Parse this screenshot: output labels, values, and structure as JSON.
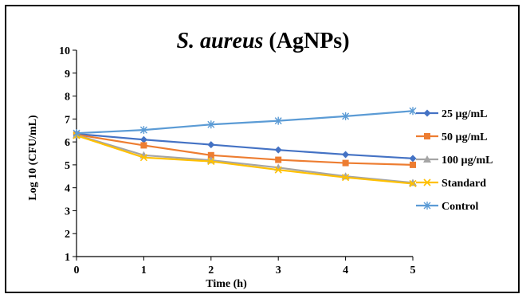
{
  "chart_data": {
    "type": "line",
    "title_italic": "S. aureus",
    "title_rest": " (AgNPs)",
    "xlabel": "Time (h)",
    "ylabel": "Log 10 (CFU/mL)",
    "x": [
      0,
      1,
      2,
      3,
      4,
      5
    ],
    "xlim": [
      0,
      5
    ],
    "ylim": [
      1,
      10
    ],
    "yticks": [
      1,
      2,
      3,
      4,
      5,
      6,
      7,
      8,
      9,
      10
    ],
    "grid": false,
    "legend_position": "right",
    "series": [
      {
        "name": "25 µg/mL",
        "color": "#4472C4",
        "marker": "diamond",
        "values": [
          6.35,
          6.1,
          5.88,
          5.65,
          5.45,
          5.28
        ]
      },
      {
        "name": "50 µg/mL",
        "color": "#ED7D31",
        "marker": "square",
        "values": [
          6.32,
          5.85,
          5.42,
          5.22,
          5.08,
          5.0
        ]
      },
      {
        "name": "100 µg/mL",
        "color": "#A5A5A5",
        "marker": "triangle",
        "values": [
          6.3,
          5.42,
          5.2,
          4.88,
          4.5,
          4.22
        ]
      },
      {
        "name": "Standard",
        "color": "#FFC000",
        "marker": "cross",
        "values": [
          6.28,
          5.32,
          5.15,
          4.78,
          4.45,
          4.18
        ]
      },
      {
        "name": "Control",
        "color": "#5B9BD5",
        "marker": "asterisk",
        "values": [
          6.38,
          6.52,
          6.76,
          6.92,
          7.12,
          7.35
        ]
      }
    ]
  }
}
